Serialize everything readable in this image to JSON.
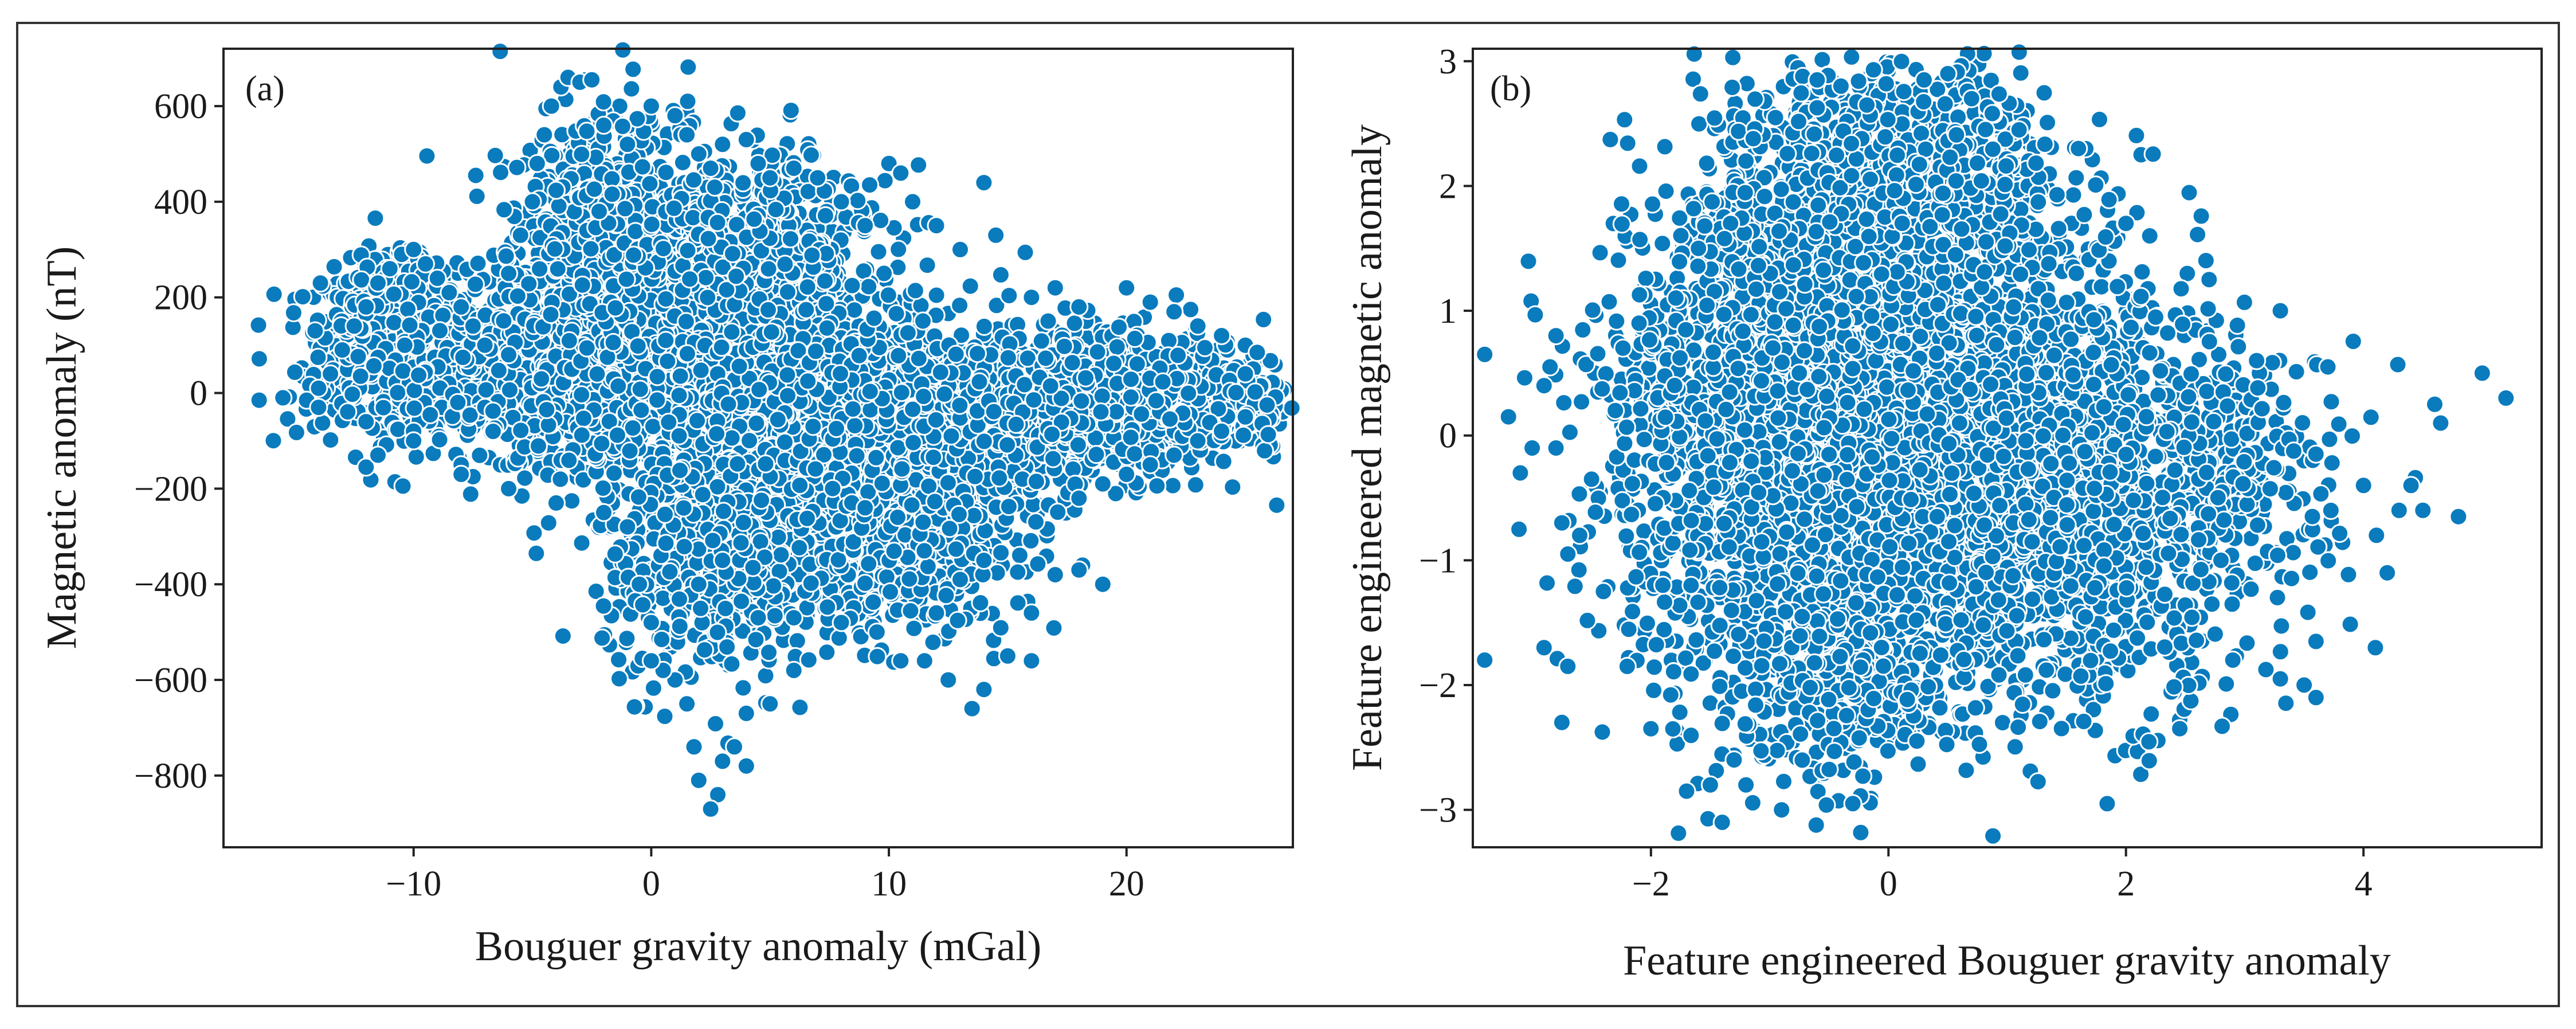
{
  "chart_data": [
    {
      "type": "scatter",
      "panel_label": "(a)",
      "xlabel": "Bouguer gravity anomaly (mGal)",
      "ylabel": "Magnetic anomaly (nT)",
      "xlim": [
        -18,
        27
      ],
      "ylim": [
        -950,
        720
      ],
      "xticks": [
        -10,
        0,
        10,
        20
      ],
      "xtick_labels": [
        "−10",
        "0",
        "10",
        "20"
      ],
      "yticks": [
        -800,
        -600,
        -400,
        -200,
        0,
        200,
        400,
        600
      ],
      "ytick_labels": [
        "−800",
        "−600",
        "−400",
        "−200",
        "0",
        "200",
        "400",
        "600"
      ],
      "grid": false,
      "legend": "none",
      "point_color": "#0a7bbd",
      "points": [
        [
          -16.5,
          -15
        ],
        [
          -15.5,
          -10
        ],
        [
          -14.5,
          -15
        ],
        [
          -14,
          10
        ],
        [
          -13.5,
          40
        ],
        [
          -13,
          90
        ],
        [
          -12.5,
          140
        ],
        [
          -12,
          180
        ],
        [
          -11.5,
          230
        ],
        [
          -11,
          260
        ],
        [
          -10.5,
          290
        ],
        [
          -10,
          300
        ],
        [
          -9.5,
          270
        ],
        [
          -9,
          240
        ],
        [
          -8.5,
          210
        ],
        [
          -8,
          180
        ],
        [
          -7.5,
          140
        ],
        [
          -7,
          100
        ],
        [
          -6,
          80
        ],
        [
          -12,
          -155
        ],
        [
          -11.5,
          -130
        ],
        [
          -8,
          -150
        ],
        [
          -7.5,
          -175
        ],
        [
          -10,
          -80
        ],
        [
          -6,
          250
        ],
        [
          -5.5,
          330
        ],
        [
          -5,
          400
        ],
        [
          -4.8,
          480
        ],
        [
          -4.5,
          540
        ],
        [
          -4.2,
          600
        ],
        [
          -3.8,
          640
        ],
        [
          -3.5,
          660
        ],
        [
          -3,
          650
        ],
        [
          -2.5,
          655
        ],
        [
          -2,
          560
        ],
        [
          -1,
          520
        ],
        [
          0,
          600
        ],
        [
          1,
          580
        ],
        [
          1.5,
          540
        ],
        [
          2,
          500
        ],
        [
          2.5,
          470
        ],
        [
          3,
          520
        ],
        [
          4,
          530
        ],
        [
          4.5,
          480
        ],
        [
          5,
          450
        ],
        [
          6,
          470
        ],
        [
          7,
          450
        ],
        [
          8,
          400
        ],
        [
          9,
          350
        ],
        [
          10,
          480
        ],
        [
          10.5,
          460
        ],
        [
          11,
          400
        ],
        [
          12,
          350
        ],
        [
          14,
          440
        ],
        [
          14.5,
          330
        ],
        [
          13,
          300
        ],
        [
          16,
          200
        ],
        [
          17,
          220
        ],
        [
          18,
          180
        ],
        [
          20,
          220
        ],
        [
          21,
          190
        ],
        [
          22,
          170
        ],
        [
          23,
          140
        ],
        [
          24,
          120
        ],
        [
          25,
          100
        ],
        [
          25.5,
          85
        ],
        [
          25,
          40
        ],
        [
          25,
          -50
        ],
        [
          24,
          -80
        ],
        [
          23,
          -100
        ],
        [
          22,
          -130
        ],
        [
          21,
          -150
        ],
        [
          20,
          -170
        ],
        [
          19,
          -190
        ],
        [
          18,
          -220
        ],
        [
          17,
          -380
        ],
        [
          16,
          -460
        ],
        [
          16,
          -560
        ],
        [
          14,
          -620
        ],
        [
          13.5,
          -660
        ],
        [
          12.5,
          -600
        ],
        [
          11.5,
          -560
        ],
        [
          10.5,
          -560
        ],
        [
          9.5,
          -500
        ],
        [
          8,
          -480
        ],
        [
          6,
          -470
        ],
        [
          4.5,
          -470
        ],
        [
          4,
          -670
        ],
        [
          4,
          -780
        ],
        [
          3.5,
          -740
        ],
        [
          3,
          -770
        ],
        [
          2.8,
          -840
        ],
        [
          2.5,
          -870
        ],
        [
          2,
          -810
        ],
        [
          1.8,
          -740
        ],
        [
          1.5,
          -650
        ],
        [
          1,
          -600
        ],
        [
          0.5,
          -580
        ],
        [
          0,
          -560
        ],
        [
          0,
          -480
        ],
        [
          -0.5,
          -400
        ],
        [
          -1,
          -280
        ],
        [
          -2,
          -250
        ],
        [
          -4,
          -230
        ],
        [
          -6,
          -200
        ],
        [
          -8,
          -170
        ],
        [
          -10,
          -100
        ],
        [
          -12,
          -60
        ],
        [
          -14,
          -30
        ],
        [
          5,
          -650
        ],
        [
          6,
          -580
        ],
        [
          15,
          -550
        ],
        [
          12,
          -460
        ],
        [
          13,
          -390
        ],
        [
          14,
          -350
        ],
        [
          18,
          -370
        ],
        [
          19,
          -400
        ],
        [
          9,
          -240
        ],
        [
          2,
          -400
        ],
        [
          3,
          -350
        ]
      ],
      "clusters": [
        {
          "cx": -11,
          "cy": 120,
          "sx": 1.4,
          "sy": 75,
          "n": 900
        },
        {
          "cx": -6,
          "cy": 40,
          "sx": 3.5,
          "sy": 80,
          "n": 700
        },
        {
          "cx": -2,
          "cy": 180,
          "sx": 2.2,
          "sy": 150,
          "n": 900
        },
        {
          "cx": 3,
          "cy": 120,
          "sx": 3.5,
          "sy": 170,
          "n": 1400
        },
        {
          "cx": 6,
          "cy": -150,
          "sx": 3.5,
          "sy": 150,
          "n": 1400
        },
        {
          "cx": 10,
          "cy": -220,
          "sx": 3,
          "sy": 120,
          "n": 900
        },
        {
          "cx": 15,
          "cy": -40,
          "sx": 4,
          "sy": 90,
          "n": 1000
        },
        {
          "cx": 21,
          "cy": -10,
          "sx": 3,
          "sy": 60,
          "n": 700
        },
        {
          "cx": 2,
          "cy": -420,
          "sx": 2,
          "sy": 100,
          "n": 250
        },
        {
          "cx": -2,
          "cy": 400,
          "sx": 1.5,
          "sy": 100,
          "n": 250
        },
        {
          "cx": 4,
          "cy": 320,
          "sx": 2.5,
          "sy": 80,
          "n": 300
        }
      ]
    },
    {
      "type": "scatter",
      "panel_label": "(b)",
      "xlabel": "Feature engineered Bouguer gravity anomaly",
      "ylabel": "Feature engineered magnetic anomaly",
      "xlim": [
        -3.5,
        5.5
      ],
      "ylim": [
        -3.3,
        3.1
      ],
      "xticks": [
        -2,
        0,
        2,
        4
      ],
      "xtick_labels": [
        "−2",
        "0",
        "2",
        "4"
      ],
      "yticks": [
        -3,
        -2,
        -1,
        0,
        1,
        2,
        3
      ],
      "ytick_labels": [
        "−3",
        "−2",
        "−1",
        "0",
        "1",
        "2",
        "3"
      ],
      "grid": false,
      "legend": "none",
      "point_color": "#0a7bbd",
      "points": [
        [
          -3.4,
          0.65
        ],
        [
          -3.4,
          -1.8
        ],
        [
          -3.2,
          0.15
        ],
        [
          -3.1,
          -0.3
        ],
        [
          -3.0,
          -0.1
        ],
        [
          -2.9,
          0.4
        ],
        [
          -2.85,
          0.55
        ],
        [
          -2.8,
          0.8
        ],
        [
          -2.8,
          -0.1
        ],
        [
          -2.75,
          -0.7
        ],
        [
          -2.7,
          -0.95
        ],
        [
          -2.7,
          -1.85
        ],
        [
          -2.75,
          -2.3
        ],
        [
          -2.9,
          -1.7
        ],
        [
          -2.6,
          -0.8
        ],
        [
          -2.5,
          -0.35
        ],
        [
          -2.4,
          -1.25
        ],
        [
          -2.3,
          0.2
        ],
        [
          -2.2,
          -1.85
        ],
        [
          -2.0,
          -2.35
        ],
        [
          -1.9,
          -1.2
        ],
        [
          -1.7,
          -2.85
        ],
        [
          -1.5,
          -2.8
        ],
        [
          -1.4,
          -3.1
        ],
        [
          -1.3,
          -2.6
        ],
        [
          -1.2,
          -2.8
        ],
        [
          -0.9,
          -3.0
        ],
        [
          -0.3,
          -2.95
        ],
        [
          4.0,
          -0.4
        ],
        [
          4.1,
          -1.7
        ],
        [
          4.2,
          -1.1
        ],
        [
          4.3,
          -0.6
        ],
        [
          4.4,
          -0.4
        ],
        [
          4.5,
          -0.6
        ],
        [
          4.6,
          0.25
        ],
        [
          4.65,
          0.1
        ],
        [
          4.8,
          -0.65
        ],
        [
          5.0,
          0.5
        ],
        [
          5.2,
          0.3
        ],
        [
          3.7,
          0.55
        ],
        [
          3.6,
          -1.65
        ],
        [
          3.5,
          -2.0
        ],
        [
          3.3,
          -1.95
        ],
        [
          3.6,
          -2.1
        ],
        [
          3.3,
          1.0
        ],
        [
          3.1,
          0.6
        ],
        [
          2.7,
          1.25
        ],
        [
          2.9,
          -1.8
        ],
        [
          2.8,
          -1.0
        ],
        [
          -0.6,
          2.85
        ],
        [
          -0.4,
          2.8
        ],
        [
          0.3,
          2.85
        ],
        [
          0.5,
          2.9
        ],
        [
          0.7,
          2.7
        ],
        [
          1.1,
          2.45
        ],
        [
          1.6,
          2.3
        ],
        [
          2.0,
          1.7
        ],
        [
          2.2,
          1.6
        ],
        [
          -1.2,
          2.2
        ],
        [
          -1.6,
          1.5
        ],
        [
          -2.1,
          0.9
        ]
      ],
      "clusters": [
        {
          "cx": -0.3,
          "cy": 0.2,
          "sx": 0.9,
          "sy": 1.0,
          "n": 2200
        },
        {
          "cx": 0.8,
          "cy": -0.2,
          "sx": 0.9,
          "sy": 0.9,
          "n": 1600
        },
        {
          "cx": -0.4,
          "cy": 1.8,
          "sx": 0.6,
          "sy": 0.5,
          "n": 500
        },
        {
          "cx": 0.3,
          "cy": 2.1,
          "sx": 0.6,
          "sy": 0.5,
          "n": 500
        },
        {
          "cx": -0.4,
          "cy": -2.0,
          "sx": 0.5,
          "sy": 0.4,
          "n": 350
        },
        {
          "cx": 1.7,
          "cy": -0.6,
          "sx": 0.7,
          "sy": 0.8,
          "n": 600
        },
        {
          "cx": -1.6,
          "cy": -0.2,
          "sx": 0.5,
          "sy": 0.9,
          "n": 400
        },
        {
          "cx": 2.8,
          "cy": -0.3,
          "sx": 0.6,
          "sy": 0.5,
          "n": 250
        }
      ]
    }
  ]
}
